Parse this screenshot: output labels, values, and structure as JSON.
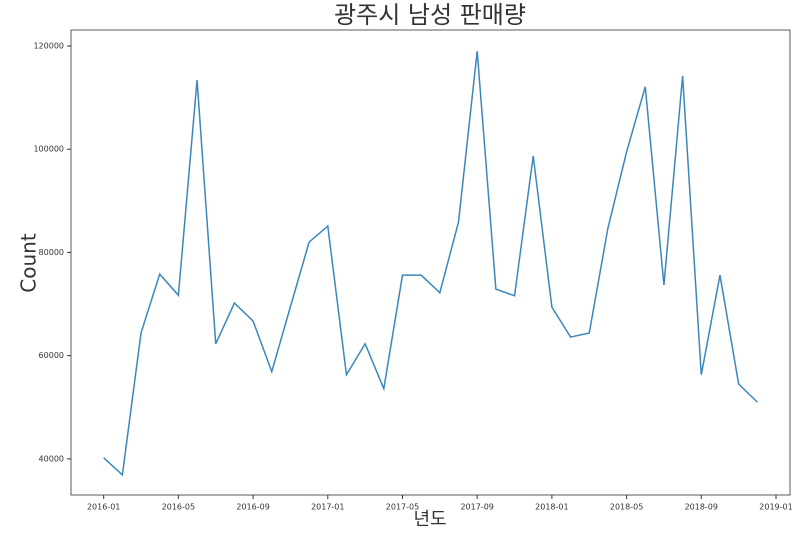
{
  "chart_data": {
    "type": "line",
    "title": "광주시 남성 판매량",
    "x_label": "년도",
    "y_label": "Count",
    "x": [
      "2016-01",
      "2016-02",
      "2016-03",
      "2016-04",
      "2016-05",
      "2016-06",
      "2016-07",
      "2016-08",
      "2016-09",
      "2016-10",
      "2016-11",
      "2016-12",
      "2017-01",
      "2017-02",
      "2017-03",
      "2017-04",
      "2017-05",
      "2017-06",
      "2017-07",
      "2017-08",
      "2017-09",
      "2017-10",
      "2017-11",
      "2017-12",
      "2018-01",
      "2018-02",
      "2018-03",
      "2018-04",
      "2018-05",
      "2018-06",
      "2018-07",
      "2018-08",
      "2018-09",
      "2018-10",
      "2018-11",
      "2018-12"
    ],
    "series": [
      {
        "name": "Count",
        "color": "#3a87be",
        "values": [
          40200,
          36900,
          64400,
          75800,
          71700,
          113400,
          62300,
          70200,
          66700,
          56900,
          69500,
          82000,
          85100,
          56300,
          62300,
          53600,
          75600,
          75600,
          72200,
          85900,
          119000,
          72900,
          71600,
          98700,
          69400,
          63600,
          64400,
          84700,
          99500,
          112100,
          73700,
          114200,
          56300,
          75600,
          54500,
          51000
        ]
      }
    ],
    "xticks": [
      "2016-01",
      "2016-05",
      "2016-09",
      "2017-01",
      "2017-05",
      "2017-09",
      "2018-01",
      "2018-05",
      "2018-09",
      "2019-01"
    ],
    "ylim": [
      33000,
      123100
    ],
    "yticks": [
      40000,
      60000,
      80000,
      100000,
      120000
    ],
    "grid": false
  }
}
